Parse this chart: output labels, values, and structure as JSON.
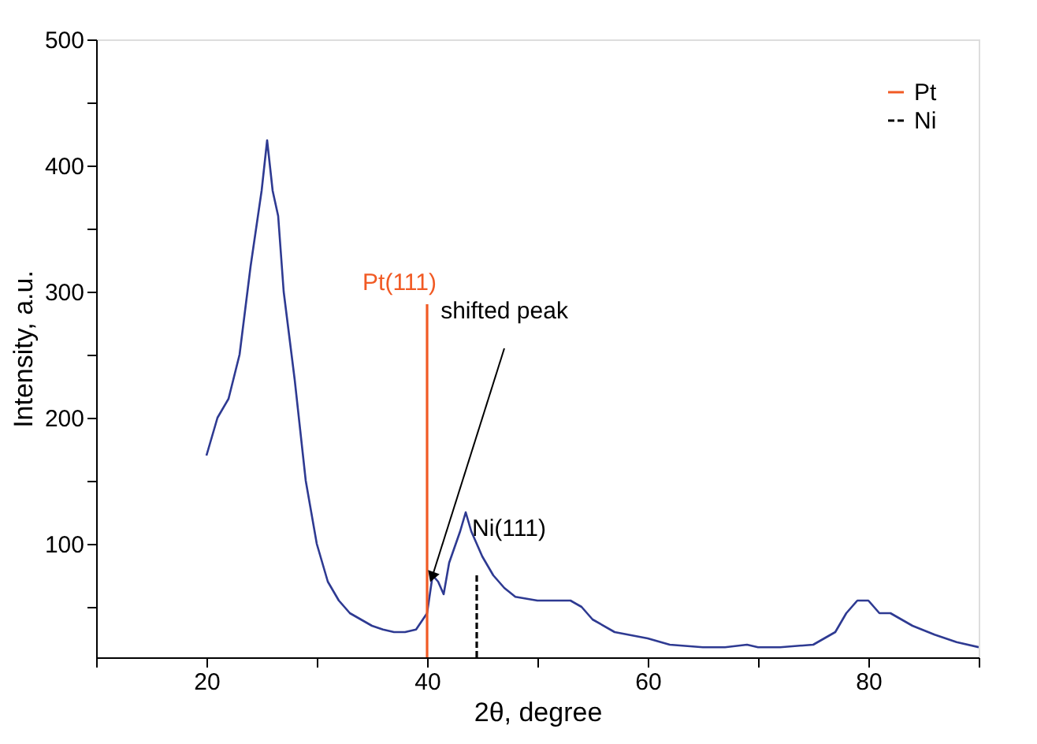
{
  "chart_data": {
    "type": "line",
    "xlabel": "2θ, degree",
    "ylabel": "Intensity, a.u.",
    "xlim": [
      10,
      90
    ],
    "ylim": [
      10,
      500
    ],
    "xticks": [
      {
        "value": 10,
        "label": null
      },
      20,
      {
        "value": 30,
        "label": null
      },
      40,
      {
        "value": 50,
        "label": null
      },
      60,
      {
        "value": 70,
        "label": null
      },
      80,
      {
        "value": 90,
        "label": null
      }
    ],
    "yticks": [
      {
        "value": 50,
        "label": null
      },
      100,
      {
        "value": 150,
        "label": null
      },
      200,
      {
        "value": 250,
        "label": null
      },
      300,
      {
        "value": 350,
        "label": null
      },
      400,
      {
        "value": 450,
        "label": null
      },
      500
    ],
    "grid": false,
    "legend": "top right",
    "series": [
      {
        "color": "#2e3a92",
        "x": [
          20,
          20.5,
          21,
          22,
          23,
          24,
          25,
          25.5,
          26,
          26.5,
          27,
          28,
          29,
          30,
          31,
          32,
          33,
          34,
          35,
          36,
          37,
          38,
          39,
          40,
          40.5,
          41,
          41.5,
          42,
          43,
          43.5,
          44,
          45,
          46,
          47,
          48,
          50,
          52,
          53,
          54,
          55,
          57,
          60,
          62,
          65,
          67,
          69,
          70,
          72,
          75,
          77,
          78,
          79,
          80,
          81,
          82,
          84,
          86,
          88,
          90
        ],
        "values": [
          170,
          185,
          200,
          215,
          250,
          320,
          380,
          420,
          380,
          360,
          300,
          230,
          150,
          100,
          70,
          55,
          45,
          40,
          35,
          32,
          30,
          30,
          32,
          45,
          75,
          70,
          60,
          85,
          110,
          125,
          110,
          90,
          75,
          65,
          58,
          55,
          55,
          55,
          50,
          40,
          30,
          25,
          20,
          18,
          18,
          20,
          18,
          18,
          20,
          30,
          45,
          55,
          55,
          45,
          45,
          35,
          28,
          22,
          18
        ]
      },
      {
        "name": "Pt",
        "color": "#f15a24",
        "line_style": "solid",
        "x": [
          40,
          40
        ],
        "values": [
          10,
          290
        ]
      },
      {
        "name": "Ni",
        "color": "#000000",
        "line_style": "dashed",
        "x": [
          44.5,
          44.5
        ],
        "values": [
          10,
          75
        ]
      }
    ],
    "annotations": [
      {
        "text": "Pt(111)",
        "x": 40,
        "y": 290
      },
      {
        "text": "shifted peak",
        "x": 40.5,
        "y": 75
      },
      {
        "text": "Ni(111)",
        "x": 44.5,
        "y": 75
      }
    ]
  }
}
